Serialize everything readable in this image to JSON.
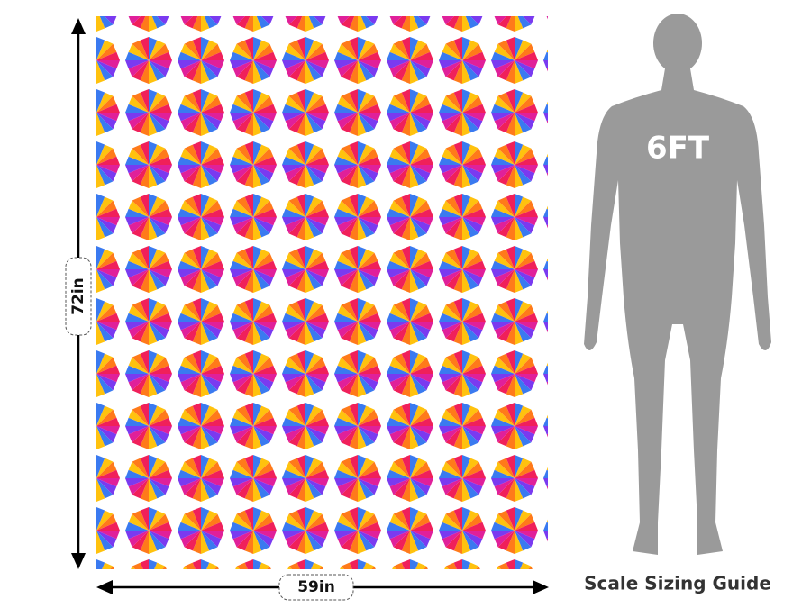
{
  "dimensions": {
    "height": "72in",
    "width": "59in"
  },
  "figure": {
    "label": "6FT"
  },
  "caption": "Scale Sizing Guide"
}
